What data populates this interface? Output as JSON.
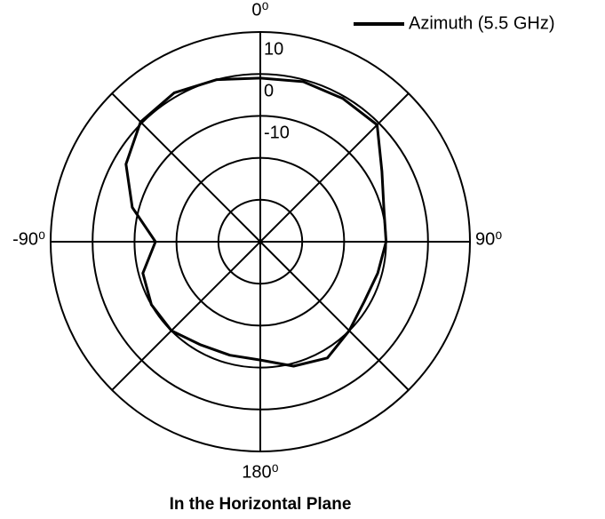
{
  "chart_data": {
    "type": "polar",
    "title": "In the Horizontal Plane",
    "series": [
      {
        "name": "Azimuth (5.5 GHz)",
        "color": "#000000",
        "x": [
          0,
          15,
          30,
          45,
          60,
          75,
          90,
          105,
          120,
          135,
          150,
          165,
          180,
          195,
          210,
          225,
          240,
          255,
          270,
          285,
          300,
          315,
          330,
          345
        ],
        "values": [
          -1,
          -0.5,
          -0.6,
          -0.6,
          -6.5,
          -9.5,
          -10,
          -11,
          -11.4,
          -10,
          -8,
          -9.3,
          -11.8,
          -12,
          -11.6,
          -10,
          -10,
          -11,
          -15,
          -8.4,
          -3,
          0.4,
          1,
          0
        ]
      }
    ],
    "rlim": [
      -40,
      10
    ],
    "rgrid": [
      -30,
      -20,
      -10,
      0,
      10
    ],
    "rticks": [
      -10,
      0,
      10
    ],
    "thetagrid": [
      0,
      45,
      90,
      135,
      180,
      225,
      270,
      315
    ],
    "thetaticks": [
      {
        "value": 0,
        "label": "0⁰"
      },
      {
        "value": 90,
        "label": "90⁰"
      },
      {
        "value": 180,
        "label": "180⁰"
      },
      {
        "value": -90,
        "label": "-90⁰"
      }
    ],
    "legend": "upper right"
  }
}
